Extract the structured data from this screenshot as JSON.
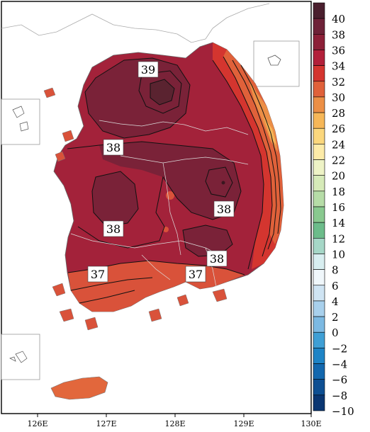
{
  "map": {
    "colorbar": {
      "ticks": [
        "40",
        "38",
        "36",
        "34",
        "32",
        "30",
        "28",
        "26",
        "24",
        "22",
        "20",
        "18",
        "16",
        "14",
        "12",
        "10",
        "8",
        "6",
        "4",
        "2",
        "0",
        "−2",
        "−4",
        "−6",
        "−8",
        "−10"
      ],
      "colors": [
        "#4a1f2e",
        "#6e2238",
        "#8c2038",
        "#b2203a",
        "#d4352f",
        "#e0613a",
        "#ec8f46",
        "#f6b758",
        "#fbd77d",
        "#fdeba8",
        "#eef3c6",
        "#d6eab8",
        "#b6dca7",
        "#89c98f",
        "#6cbc8a",
        "#a6d7c7",
        "#d8eef0",
        "#f0f7fb",
        "#cfe4f3",
        "#a8d0ec",
        "#7cb9e2",
        "#3f9fd5",
        "#1e84c6",
        "#1368ae",
        "#0e4f92",
        "#0a3672"
      ]
    },
    "x_axis": {
      "ticks": [
        "126E",
        "127E",
        "128E",
        "129E",
        "130E"
      ]
    },
    "contour_labels": [
      "39",
      "38",
      "38",
      "38",
      "38",
      "37",
      "37"
    ],
    "fill_colors": {
      "land_main": "#a3223a",
      "land_hot": "#7a2238",
      "land_peak": "#5a2330",
      "coast_south": "#d9523a",
      "coast_east": "#e5743f",
      "jeju": "#e2673c"
    }
  }
}
